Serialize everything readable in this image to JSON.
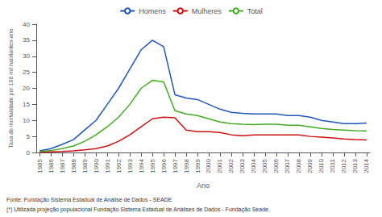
{
  "chart_data": {
    "type": "line",
    "xlabel": "Ano",
    "ylabel": "Taxa de mortalidade por 100 mil habitantes-ano",
    "x": [
      1985,
      1986,
      1987,
      1988,
      1989,
      1990,
      1991,
      1992,
      1993,
      1994,
      1995,
      1996,
      1997,
      1998,
      1999,
      2000,
      2001,
      2002,
      2003,
      2004,
      2005,
      2006,
      2007,
      2008,
      2009,
      2010,
      2011,
      2012,
      2013,
      2014
    ],
    "xlim": [
      1984.7,
      2014.3
    ],
    "xticks": [
      1985,
      1986,
      1987,
      1988,
      1989,
      1990,
      1991,
      1992,
      1993,
      1994,
      1995,
      1996,
      1997,
      1998,
      1999,
      2000,
      2001,
      2002,
      2003,
      2004,
      2005,
      2006,
      2007,
      2008,
      2009,
      2010,
      2011,
      2012,
      2013,
      2014
    ],
    "ylim": [
      0,
      40
    ],
    "yticks": [
      0,
      5,
      10,
      15,
      20,
      25,
      30,
      35,
      40
    ],
    "series": [
      {
        "name": "Homens",
        "color": "#2255bb",
        "values": [
          0.5,
          1.2,
          2.5,
          4.0,
          7.0,
          10.0,
          15.0,
          20.0,
          26.0,
          32.0,
          35.0,
          33.0,
          18.0,
          17.0,
          16.5,
          15.0,
          13.5,
          12.5,
          12.2,
          12.0,
          12.0,
          12.0,
          11.5,
          11.5,
          11.0,
          10.0,
          9.5,
          9.0,
          9.0,
          9.2
        ]
      },
      {
        "name": "Mulheres",
        "color": "#cc1111",
        "values": [
          0.1,
          0.2,
          0.3,
          0.5,
          0.8,
          1.2,
          2.0,
          3.5,
          5.5,
          8.0,
          10.5,
          11.0,
          10.8,
          7.0,
          6.5,
          6.5,
          6.2,
          5.5,
          5.2,
          5.5,
          5.5,
          5.5,
          5.5,
          5.5,
          5.0,
          4.8,
          4.5,
          4.2,
          4.0,
          3.9
        ]
      },
      {
        "name": "Total",
        "color": "#44aa22",
        "values": [
          0.3,
          0.6,
          1.2,
          2.0,
          3.5,
          5.5,
          8.0,
          11.0,
          15.0,
          20.0,
          22.5,
          22.0,
          13.0,
          12.0,
          11.5,
          10.5,
          9.5,
          9.0,
          8.8,
          8.7,
          8.8,
          8.8,
          8.5,
          8.5,
          8.0,
          7.5,
          7.2,
          7.0,
          6.8,
          6.7
        ]
      }
    ],
    "annotations": [
      "Fonte: Fundação Sistema Estadual de Análise de Dados - SEADE",
      "(*) Utilizada projeção populacional Fundação Sistema Estadual de Análises de Dados - Fundação Seade."
    ],
    "grid": false,
    "legend": "top"
  }
}
